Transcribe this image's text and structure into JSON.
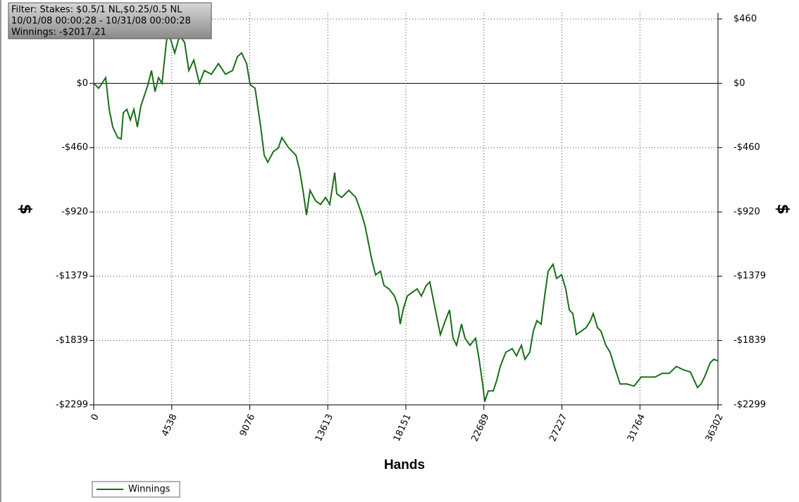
{
  "chart_data": {
    "type": "line",
    "info_box": [
      "Filter: Stakes: $0.5/1 NL,$0.25/0.5 NL",
      "10/01/08 00:00:28 - 10/31/08 00:00:28",
      "Winnings: -$2017.21"
    ],
    "x_label": "Hands",
    "y_label": "$",
    "y2_label": "$",
    "x": [
      0,
      287,
      697,
      901,
      1106,
      1393,
      1598,
      1721,
      1926,
      2130,
      2335,
      2540,
      2745,
      2950,
      3155,
      3360,
      3564,
      3769,
      3974,
      4179,
      4302,
      4466,
      4712,
      4998,
      5285,
      5531,
      5818,
      6146,
      6432,
      6842,
      7252,
      7661,
      8071,
      8358,
      8604,
      8890,
      9095,
      9382,
      9710,
      9915,
      10120,
      10447,
      10734,
      10939,
      11349,
      11758,
      11963,
      12168,
      12373,
      12578,
      12906,
      13192,
      13479,
      13725,
      14012,
      14135,
      14421,
      14831,
      15241,
      15528,
      15773,
      15937,
      16183,
      16388,
      16675,
      16880,
      17166,
      17494,
      17699,
      17822,
      17986,
      18232,
      18518,
      18805,
      19051,
      19338,
      19543,
      19748,
      19952,
      20157,
      20444,
      20690,
      20895,
      21100,
      21386,
      21591,
      21878,
      22206,
      22411,
      22615,
      22738,
      22943,
      23230,
      23435,
      23640,
      23967,
      24336,
      24582,
      24869,
      25074,
      25360,
      25565,
      25770,
      26016,
      26221,
      26426,
      26712,
      26917,
      27204,
      27450,
      27655,
      27860,
      28064,
      28351,
      28638,
      28884,
      29048,
      29294,
      29498,
      29785,
      30031,
      30277,
      30605,
      31014,
      31424,
      31834,
      32243,
      32653,
      33063,
      33472,
      33882,
      34292,
      34702,
      35111,
      35316,
      35521,
      35849,
      36054,
      36302
    ],
    "series": [
      {
        "name": "Winnings",
        "color": "#1a6e1a",
        "values": [
          0,
          -35,
          40,
          -186,
          -312,
          -388,
          -398,
          -211,
          -186,
          -262,
          -186,
          -312,
          -161,
          -86,
          -10,
          91,
          -60,
          40,
          0,
          242,
          367,
          317,
          217,
          342,
          292,
          91,
          166,
          0,
          91,
          65,
          141,
          65,
          91,
          191,
          217,
          141,
          -10,
          -35,
          -312,
          -514,
          -564,
          -488,
          -463,
          -388,
          -463,
          -514,
          -614,
          -765,
          -942,
          -765,
          -841,
          -866,
          -816,
          -866,
          -639,
          -790,
          -816,
          -765,
          -816,
          -916,
          -1017,
          -1118,
          -1269,
          -1369,
          -1344,
          -1445,
          -1470,
          -1521,
          -1596,
          -1722,
          -1621,
          -1521,
          -1495,
          -1470,
          -1521,
          -1445,
          -1420,
          -1546,
          -1672,
          -1797,
          -1697,
          -1621,
          -1823,
          -1873,
          -1722,
          -1823,
          -1873,
          -1823,
          -1974,
          -2150,
          -2276,
          -2200,
          -2200,
          -2125,
          -2024,
          -1923,
          -1898,
          -1949,
          -1873,
          -1974,
          -1923,
          -1772,
          -1697,
          -1722,
          -1521,
          -1344,
          -1294,
          -1395,
          -1369,
          -1470,
          -1621,
          -1646,
          -1797,
          -1772,
          -1747,
          -1697,
          -1646,
          -1747,
          -1772,
          -1873,
          -1923,
          -2024,
          -2150,
          -2150,
          -2165,
          -2100,
          -2100,
          -2100,
          -2074,
          -2074,
          -2024,
          -2049,
          -2064,
          -2175,
          -2150,
          -2100,
          -1999,
          -1974,
          -1984
        ]
      }
    ],
    "xlim": [
      0,
      36302
    ],
    "xticks": [
      0,
      4538,
      9076,
      13613,
      18151,
      22689,
      27227,
      31764,
      36302
    ],
    "ylim": [
      -2299,
      505
    ],
    "yticks": [
      {
        "value": 460,
        "label": "$460"
      },
      {
        "value": 0,
        "label": "$0"
      },
      {
        "value": -460,
        "label": "-$460"
      },
      {
        "value": -920,
        "label": "-$920"
      },
      {
        "value": -1379,
        "label": "-$1379"
      },
      {
        "value": -1839,
        "label": "-$1839"
      },
      {
        "value": -2299,
        "label": "-$2299"
      }
    ],
    "grid": true
  }
}
